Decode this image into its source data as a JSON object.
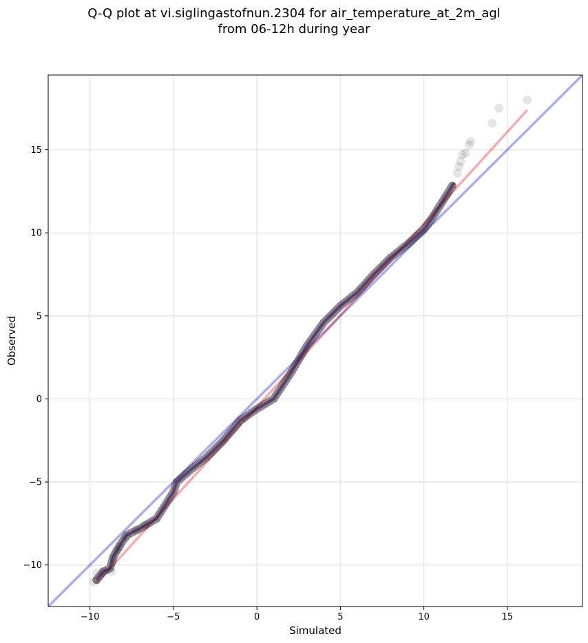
{
  "chart_data": {
    "type": "scatter",
    "title": [
      "Q-Q plot at vi.siglingastofnun.2304 for air_temperature_at_2m_agl",
      "from 06-12h during year"
    ],
    "xlabel": "Simulated",
    "ylabel": "Observed",
    "xlim": [
      -12.5,
      19.5
    ],
    "ylim": [
      -12.5,
      19.5
    ],
    "xticks": [
      -10,
      -5,
      0,
      5,
      10,
      15
    ],
    "yticks": [
      -10,
      -5,
      0,
      5,
      10,
      15
    ],
    "xtick_labels": [
      "−10",
      "−5",
      "0",
      "5",
      "10",
      "15"
    ],
    "ytick_labels": [
      "−10",
      "−5",
      "0",
      "5",
      "10",
      "15"
    ],
    "grid": true,
    "legend": "none",
    "reference_line": {
      "kind": "y=x",
      "color": "#0000dd"
    },
    "fit_line": {
      "x": [
        -9.6,
        16.2
      ],
      "y": [
        -11.1,
        17.4
      ],
      "color": "#ee0000"
    },
    "curve": [
      [
        -9.6,
        -10.9
      ],
      [
        -9.2,
        -10.4
      ],
      [
        -8.8,
        -10.2
      ],
      [
        -8.6,
        -9.5
      ],
      [
        -8.2,
        -8.8
      ],
      [
        -7.8,
        -8.2
      ],
      [
        -7.0,
        -7.8
      ],
      [
        -6.0,
        -7.2
      ],
      [
        -5.0,
        -5.6
      ],
      [
        -4.8,
        -5.0
      ],
      [
        -4.0,
        -4.3
      ],
      [
        -3.0,
        -3.5
      ],
      [
        -2.0,
        -2.5
      ],
      [
        -1.0,
        -1.3
      ],
      [
        0.0,
        -0.6
      ],
      [
        1.0,
        0.0
      ],
      [
        2.0,
        1.5
      ],
      [
        3.0,
        3.2
      ],
      [
        4.0,
        4.6
      ],
      [
        5.0,
        5.6
      ],
      [
        6.0,
        6.4
      ],
      [
        7.0,
        7.5
      ],
      [
        8.0,
        8.5
      ],
      [
        9.0,
        9.3
      ],
      [
        10.0,
        10.2
      ],
      [
        10.5,
        10.9
      ],
      [
        11.0,
        11.7
      ],
      [
        11.5,
        12.5
      ],
      [
        11.8,
        13.0
      ]
    ],
    "outliers": [
      [
        -9.8,
        -11.0
      ],
      [
        -9.6,
        -10.5
      ],
      [
        -9.2,
        -10.4
      ],
      [
        -8.7,
        -10.4
      ],
      [
        -8.6,
        -9.6
      ],
      [
        -8.4,
        -9.1
      ],
      [
        -8.2,
        -8.9
      ],
      [
        -7.8,
        -8.3
      ],
      [
        -7.2,
        -7.9
      ],
      [
        -6.7,
        -7.6
      ],
      [
        12.0,
        13.6
      ],
      [
        12.1,
        14.0
      ],
      [
        12.2,
        14.3
      ],
      [
        12.3,
        14.7
      ],
      [
        12.5,
        14.8
      ],
      [
        12.7,
        15.3
      ],
      [
        12.8,
        15.5
      ],
      [
        14.1,
        16.6
      ],
      [
        14.5,
        17.5
      ],
      [
        16.2,
        18.0
      ]
    ]
  }
}
